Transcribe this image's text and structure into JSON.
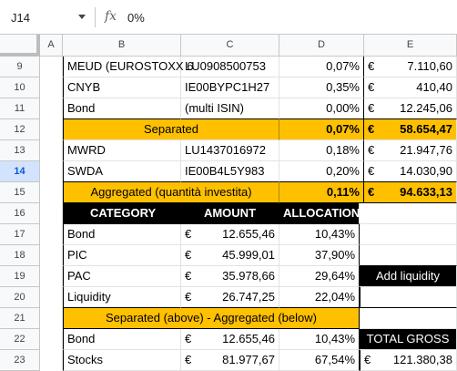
{
  "formula_bar": {
    "name_box": "J14",
    "fx": "fx",
    "value": "0%"
  },
  "columns": [
    "A",
    "B",
    "C",
    "D",
    "E"
  ],
  "rows": [
    "9",
    "10",
    "11",
    "12",
    "13",
    "14",
    "15",
    "16",
    "17",
    "18",
    "19",
    "20",
    "21",
    "22",
    "23"
  ],
  "holdings_top": [
    {
      "ticker": "MEUD (EUROSTOXX 6",
      "isin": "LU0908500753",
      "pct": "0,07%",
      "cur": "€",
      "value": "7.110,60"
    },
    {
      "ticker": "CNYB",
      "isin": "IE00BYPC1H27",
      "pct": "0,35%",
      "cur": "€",
      "value": "410,40"
    },
    {
      "ticker": "Bond",
      "isin": "(multi ISIN)",
      "pct": "0,00%",
      "cur": "€",
      "value": "12.245,06"
    }
  ],
  "separated": {
    "label": "Separated",
    "pct": "0,07%",
    "cur": "€",
    "value": "58.654,47"
  },
  "holdings_bottom": [
    {
      "ticker": "MWRD",
      "isin": "LU1437016972",
      "pct": "0,18%",
      "cur": "€",
      "value": "21.947,76"
    },
    {
      "ticker": "SWDA",
      "isin": "IE00B4L5Y983",
      "pct": "0,20%",
      "cur": "€",
      "value": "14.030,90"
    }
  ],
  "aggregated": {
    "label": "Aggregated (quantità investita)",
    "pct": "0,11%",
    "cur": "€",
    "value": "94.633,13"
  },
  "summary_header": {
    "category": "CATEGORY",
    "amount": "AMOUNT",
    "allocation": "ALLOCATION"
  },
  "summary_rows": [
    {
      "category": "Bond",
      "cur": "€",
      "amount": "12.655,46",
      "allocation": "10,43%"
    },
    {
      "category": "PIC",
      "cur": "€",
      "amount": "45.999,01",
      "allocation": "37,90%"
    },
    {
      "category": "PAC",
      "cur": "€",
      "amount": "35.978,66",
      "allocation": "29,64%"
    },
    {
      "category": "Liquidity",
      "cur": "€",
      "amount": "26.747,25",
      "allocation": "22,04%"
    }
  ],
  "separated_aggregated_label": "Separated (above) - Aggregated (below)",
  "bottom_rows": [
    {
      "category": "Bond",
      "cur": "€",
      "amount": "12.655,46",
      "allocation": "10,43%"
    },
    {
      "category": "Stocks",
      "cur": "€",
      "amount": "81.977,67",
      "allocation": "67,54%"
    }
  ],
  "add_liquidity_label": "Add liquidity",
  "total_gross": {
    "label": "TOTAL GROSS",
    "cur": "€",
    "value": "121.380,38"
  },
  "colors": {
    "highlight": "#ffc000",
    "header_black": "#000000",
    "selected_row": "#d3e3fd"
  }
}
